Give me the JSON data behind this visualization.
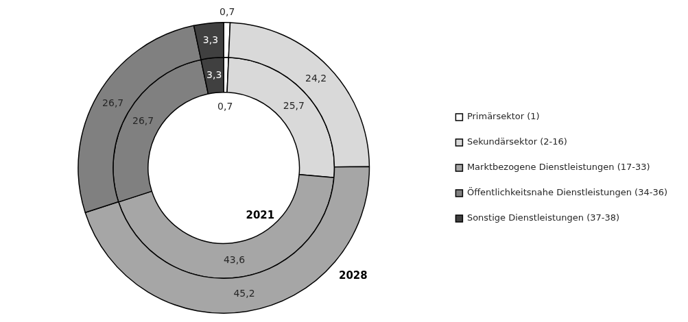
{
  "chart_data": {
    "type": "donut",
    "categories": [
      "Primärsektor (1)",
      "Sekundärsektor (2-16)",
      "Marktbezogene Dienstleistungen (17-33)",
      "Öffentlichkeitsnahe Dienstleistungen (34-36)",
      "Sonstige Dienstleistungen (37-38)"
    ],
    "colors": [
      "#ffffff",
      "#d9d9d9",
      "#a6a6a6",
      "#808080",
      "#404040"
    ],
    "series": [
      {
        "name": "2021",
        "values": [
          0.7,
          25.7,
          43.6,
          26.7,
          3.3
        ],
        "value_labels": [
          "0,7",
          "25,7",
          "43,6",
          "26,7",
          "3,3"
        ]
      },
      {
        "name": "2028",
        "values": [
          0.7,
          24.2,
          45.2,
          26.7,
          3.3
        ],
        "value_labels": [
          "0,7",
          "24,2",
          "45,2",
          "26,7",
          "3,3"
        ]
      }
    ],
    "legend": "right"
  }
}
